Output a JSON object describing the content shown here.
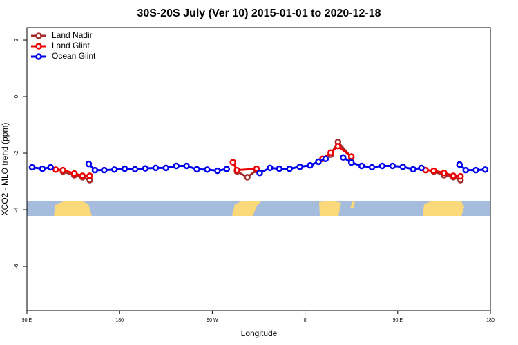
{
  "chart_data": {
    "type": "line",
    "title": "30S-20S July (Ver 10)   2015-01-01 to 2020-12-18",
    "x_label": "Longitude",
    "y_label": "XCO2 - MLO trend (ppm)",
    "xlim": [
      90,
      540
    ],
    "ylim": [
      -7.56,
      2.44
    ],
    "xticks": [
      {
        "value": 90,
        "label": "90 E"
      },
      {
        "value": 180,
        "label": "180"
      },
      {
        "value": 270,
        "label": "90 W"
      },
      {
        "value": 360,
        "label": "0"
      },
      {
        "value": 450,
        "label": "90 E"
      },
      {
        "value": 540,
        "label": "180"
      }
    ],
    "yticks": [
      2,
      0,
      -2,
      -4,
      -6
    ],
    "legend": "top-left",
    "series": [
      {
        "name": "Land Nadir",
        "color": "#a52a2a",
        "x": [
          125,
          136,
          144,
          151,
          null,
          294,
          304,
          313,
          null,
          385,
          392,
          405,
          null,
          485,
          495,
          504,
          511
        ],
        "values": [
          -2.65,
          -2.78,
          -2.85,
          -2.95,
          null,
          -2.65,
          -2.85,
          -2.6,
          null,
          -2.05,
          -1.6,
          -2.15,
          null,
          -2.65,
          -2.78,
          -2.85,
          -2.95
        ]
      },
      {
        "name": "Land Glint",
        "color": "#ee0000",
        "x": [
          118,
          125,
          136,
          144,
          151,
          null,
          290,
          294,
          313,
          null,
          377,
          385,
          392,
          405,
          null,
          477,
          485,
          495,
          504,
          511
        ],
        "values": [
          -2.58,
          -2.6,
          -2.72,
          -2.8,
          -2.8,
          null,
          -2.32,
          -2.6,
          -2.55,
          null,
          -2.2,
          -1.98,
          -1.75,
          -2.12,
          null,
          -2.6,
          -2.62,
          -2.7,
          -2.8,
          -2.82
        ]
      },
      {
        "name": "Ocean Glint",
        "color": "#0000ee",
        "x": [
          95,
          105,
          113,
          null,
          150,
          156,
          165,
          175,
          185,
          195,
          205,
          215,
          225,
          235,
          245,
          255,
          265,
          275,
          284,
          null,
          316,
          326,
          335,
          345,
          355,
          365,
          373,
          380,
          null,
          397,
          405,
          415,
          425,
          435,
          445,
          455,
          465,
          473,
          null,
          510,
          516,
          526,
          535
        ],
        "values": [
          -2.5,
          -2.55,
          -2.5,
          null,
          -2.38,
          -2.6,
          -2.6,
          -2.58,
          -2.55,
          -2.57,
          -2.54,
          -2.52,
          -2.52,
          -2.45,
          -2.45,
          -2.57,
          -2.58,
          -2.62,
          -2.56,
          null,
          -2.7,
          -2.52,
          -2.55,
          -2.55,
          -2.48,
          -2.43,
          -2.3,
          -2.2,
          null,
          -2.15,
          -2.33,
          -2.45,
          -2.5,
          -2.45,
          -2.45,
          -2.48,
          -2.57,
          -2.52,
          null,
          -2.4,
          -2.6,
          -2.6,
          -2.58
        ]
      }
    ]
  }
}
